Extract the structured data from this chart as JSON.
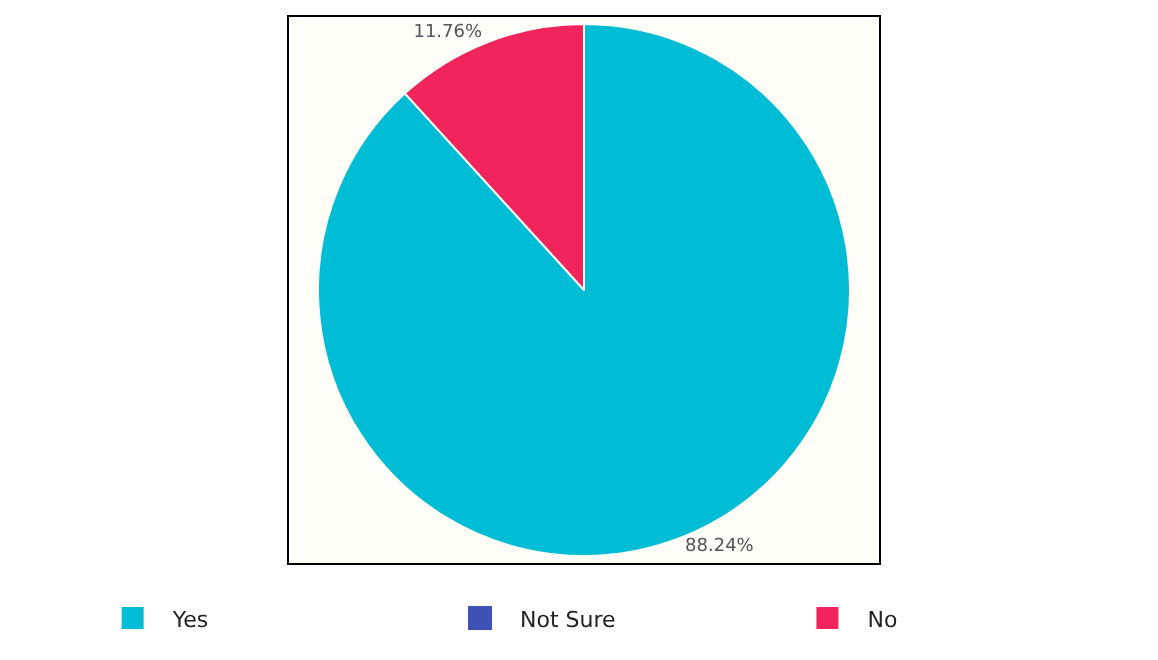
{
  "chart_data": {
    "type": "pie",
    "categories": [
      "Yes",
      "Not Sure",
      "No"
    ],
    "values": [
      88.24,
      0,
      11.76
    ],
    "colors": [
      "#00bcd4",
      "#3f51b5",
      "#f2245c"
    ],
    "value_labels": [
      "88.24%",
      null,
      "11.76%"
    ],
    "legend": "bottom"
  }
}
